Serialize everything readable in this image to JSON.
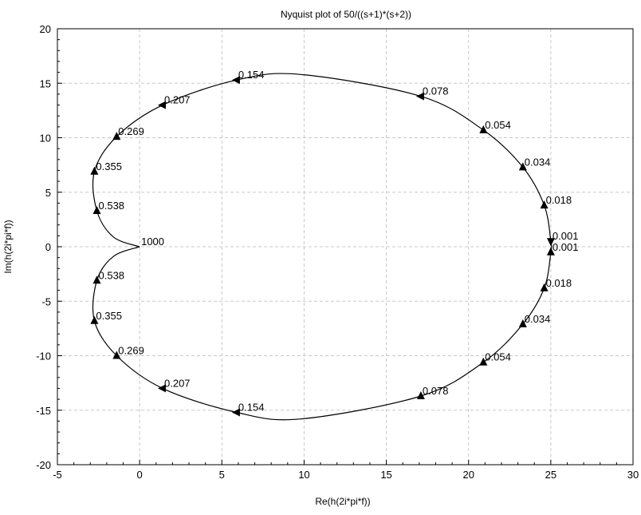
{
  "chart_data": {
    "type": "line",
    "title": "Nyquist plot of 50/((s+1)*(s+2))",
    "xlabel": "Re(h(2i*pi*f))",
    "ylabel": "Im(h(2i*pi*f))",
    "xlim": [
      -5,
      30
    ],
    "ylim": [
      -20,
      20
    ],
    "xticks": [
      "-5",
      "0",
      "5",
      "10",
      "15",
      "20",
      "25",
      "30"
    ],
    "yticks": [
      "-20",
      "-15",
      "-10",
      "-5",
      "0",
      "5",
      "10",
      "15",
      "20"
    ],
    "grid": true,
    "series": [
      {
        "points": [
          [
            0,
            0
          ],
          [
            -1.6,
            0.9
          ],
          [
            -2.6,
            3.3
          ],
          [
            -2.75,
            6.9
          ],
          [
            -1.4,
            10.1
          ],
          [
            1.4,
            13.0
          ],
          [
            5.9,
            15.3
          ],
          [
            9.8,
            15.8
          ],
          [
            17.1,
            13.8
          ],
          [
            20.9,
            10.7
          ],
          [
            23.3,
            7.3
          ],
          [
            24.6,
            3.8
          ],
          [
            25.0,
            0.5
          ],
          [
            25.0,
            -0.5
          ],
          [
            24.6,
            -3.8
          ],
          [
            23.3,
            -7.1
          ],
          [
            20.9,
            -10.6
          ],
          [
            17.1,
            -13.7
          ],
          [
            9.8,
            -15.8
          ],
          [
            5.9,
            -15.2
          ],
          [
            1.4,
            -13.0
          ],
          [
            -1.4,
            -10.0
          ],
          [
            -2.75,
            -6.8
          ],
          [
            -2.6,
            -3.1
          ],
          [
            -1.6,
            -0.9
          ],
          [
            0,
            0
          ]
        ]
      }
    ],
    "annotations": [
      {
        "text": "0.154",
        "x": 5.9,
        "y": 15.3
      },
      {
        "text": "0.078",
        "x": 17.1,
        "y": 13.8
      },
      {
        "text": "0.207",
        "x": 1.4,
        "y": 13.0
      },
      {
        "text": "0.054",
        "x": 20.9,
        "y": 10.7
      },
      {
        "text": "0.269",
        "x": -1.4,
        "y": 10.1
      },
      {
        "text": "0.034",
        "x": 23.3,
        "y": 7.3
      },
      {
        "text": "0.355",
        "x": -2.75,
        "y": 6.9
      },
      {
        "text": "0.018",
        "x": 24.6,
        "y": 3.8
      },
      {
        "text": "0.538",
        "x": -2.6,
        "y": 3.3
      },
      {
        "text": "0.001",
        "x": 25.0,
        "y": 0.5
      },
      {
        "text": "1000",
        "x": 0.0,
        "y": 0.0
      },
      {
        "text": "0.001",
        "x": 25.0,
        "y": -0.5
      },
      {
        "text": "0.538",
        "x": -2.6,
        "y": -3.1
      },
      {
        "text": "0.018",
        "x": 24.6,
        "y": -3.8
      },
      {
        "text": "0.355",
        "x": -2.75,
        "y": -6.8
      },
      {
        "text": "0.034",
        "x": 23.3,
        "y": -7.1
      },
      {
        "text": "0.269",
        "x": -1.4,
        "y": -10.0
      },
      {
        "text": "0.054",
        "x": 20.9,
        "y": -10.6
      },
      {
        "text": "0.207",
        "x": 1.4,
        "y": -13.0
      },
      {
        "text": "0.078",
        "x": 17.1,
        "y": -13.7
      },
      {
        "text": "0.154",
        "x": 5.9,
        "y": -15.2
      }
    ],
    "arrows": [
      {
        "x": 5.9,
        "y": 15.3,
        "dir": "left"
      },
      {
        "x": 17.1,
        "y": 13.8,
        "dir": "left"
      },
      {
        "x": 1.4,
        "y": 13.0,
        "dir": "left"
      },
      {
        "x": 20.9,
        "y": 10.7,
        "dir": "up"
      },
      {
        "x": -1.4,
        "y": 10.1,
        "dir": "up"
      },
      {
        "x": 23.3,
        "y": 7.3,
        "dir": "up"
      },
      {
        "x": -2.75,
        "y": 6.9,
        "dir": "up"
      },
      {
        "x": 24.6,
        "y": 3.8,
        "dir": "up"
      },
      {
        "x": -2.6,
        "y": 3.3,
        "dir": "up"
      },
      {
        "x": 25.0,
        "y": 0.5,
        "dir": "down"
      },
      {
        "x": 25.0,
        "y": -0.5,
        "dir": "up"
      },
      {
        "x": -2.6,
        "y": -3.1,
        "dir": "up"
      },
      {
        "x": 24.6,
        "y": -3.8,
        "dir": "up"
      },
      {
        "x": -2.75,
        "y": -6.8,
        "dir": "up"
      },
      {
        "x": 23.3,
        "y": -7.1,
        "dir": "up"
      },
      {
        "x": -1.4,
        "y": -10.0,
        "dir": "up"
      },
      {
        "x": 20.9,
        "y": -10.6,
        "dir": "up"
      },
      {
        "x": 1.4,
        "y": -13.0,
        "dir": "left"
      },
      {
        "x": 17.1,
        "y": -13.7,
        "dir": "up"
      },
      {
        "x": 5.9,
        "y": -15.2,
        "dir": "left"
      }
    ]
  }
}
